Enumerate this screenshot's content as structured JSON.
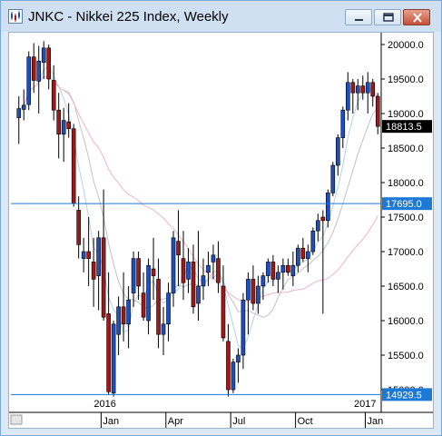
{
  "window": {
    "title": "JNKC - Nikkei 225 Index, Weekly",
    "controls": [
      "minimize-icon",
      "restore-icon",
      "close-icon"
    ]
  },
  "chart_data": {
    "type": "candlestick",
    "title": "JNKC - Nikkei 225 Index, Weekly",
    "ylim": [
      14800,
      20400
    ],
    "y_ticks": [
      "20000.0",
      "19500.0",
      "19000.0",
      "18500.0",
      "18000.0",
      "17500.0",
      "17000.0",
      "16500.0",
      "16000.0",
      "15500.0",
      "15000.0"
    ],
    "x_ticks": [
      "Jan",
      "Apr",
      "Jul",
      "Oct",
      "Jan"
    ],
    "year_labels": [
      "2016",
      "2017"
    ],
    "price_labels": [
      {
        "text": "18813.5",
        "value": 18813.5,
        "style": "last"
      },
      {
        "text": "17695.0",
        "value": 17695.0,
        "style": "line"
      },
      {
        "text": "14929.5",
        "value": 14929.5,
        "style": "line"
      }
    ],
    "horizontal_lines": [
      17695.0,
      14929.5
    ],
    "colors": {
      "up": "#1f4fbf",
      "down": "#a01818",
      "ma_fast": "#b3d1f0",
      "ma_mid": "#c2c2c2",
      "ma_slow": "#f0b4c8",
      "hline": "#1c7ad6",
      "last_label": "#000000",
      "line_label": "#1c7ad6"
    },
    "candles": [
      [
        18940,
        19250,
        18560,
        19070
      ],
      [
        19060,
        19350,
        18900,
        19120
      ],
      [
        19130,
        19900,
        19050,
        19820
      ],
      [
        19820,
        20020,
        19300,
        19480
      ],
      [
        19470,
        19980,
        19000,
        19760
      ],
      [
        19740,
        20050,
        19500,
        19950
      ],
      [
        19950,
        20000,
        19350,
        19500
      ],
      [
        19480,
        19700,
        18900,
        19050
      ],
      [
        19050,
        19300,
        18350,
        18700
      ],
      [
        18700,
        19080,
        18300,
        18900
      ],
      [
        18880,
        19150,
        18650,
        18780
      ],
      [
        18780,
        18850,
        17650,
        17700
      ],
      [
        17600,
        17800,
        16900,
        17100
      ],
      [
        16900,
        17200,
        16700,
        17000
      ],
      [
        17000,
        17500,
        16500,
        16900
      ],
      [
        16850,
        17200,
        16200,
        16600
      ],
      [
        16650,
        17300,
        16150,
        17200
      ],
      [
        17200,
        17900,
        16000,
        16050
      ],
      [
        16100,
        16700,
        14930,
        14970
      ],
      [
        14950,
        16000,
        14900,
        15950
      ],
      [
        15800,
        16350,
        15500,
        16200
      ],
      [
        16200,
        16700,
        15700,
        15950
      ],
      [
        15950,
        16500,
        15600,
        16300
      ],
      [
        16400,
        17000,
        16200,
        16900
      ],
      [
        16900,
        17000,
        16300,
        16500
      ],
      [
        16400,
        16700,
        16000,
        16050
      ],
      [
        16000,
        16900,
        15800,
        16800
      ],
      [
        16750,
        17200,
        16300,
        16650
      ],
      [
        16600,
        16900,
        15600,
        15800
      ],
      [
        15800,
        16200,
        15500,
        15950
      ],
      [
        15950,
        16550,
        15700,
        16400
      ],
      [
        16400,
        17300,
        16200,
        17200
      ],
      [
        17150,
        17600,
        16500,
        16950
      ],
      [
        16900,
        17300,
        16300,
        16550
      ],
      [
        16600,
        17050,
        16400,
        16850
      ],
      [
        16850,
        17100,
        16100,
        16200
      ],
      [
        16250,
        17300,
        16000,
        16500
      ],
      [
        16500,
        16900,
        16300,
        16650
      ],
      [
        16700,
        17000,
        16500,
        16800
      ],
      [
        16850,
        17100,
        16600,
        16950
      ],
      [
        16900,
        17150,
        16400,
        16550
      ],
      [
        16500,
        16800,
        15700,
        15750
      ],
      [
        15700,
        15950,
        14900,
        15000
      ],
      [
        15000,
        15450,
        14950,
        15400
      ],
      [
        15400,
        15600,
        15100,
        15500
      ],
      [
        15500,
        16400,
        15300,
        16300
      ],
      [
        16300,
        16700,
        15800,
        16600
      ],
      [
        16600,
        16800,
        16150,
        16250
      ],
      [
        16250,
        16650,
        16100,
        16500
      ],
      [
        16500,
        16700,
        16300,
        16650
      ],
      [
        16650,
        16900,
        16550,
        16850
      ],
      [
        16850,
        16950,
        16500,
        16600
      ],
      [
        16600,
        16800,
        16400,
        16700
      ],
      [
        16700,
        16900,
        16450,
        16800
      ],
      [
        16800,
        16900,
        16650,
        16700
      ],
      [
        16650,
        17000,
        16500,
        16800
      ],
      [
        16800,
        17100,
        16700,
        17050
      ],
      [
        17050,
        17200,
        16850,
        16900
      ],
      [
        16900,
        17100,
        16700,
        17000
      ],
      [
        17000,
        17350,
        16950,
        17300
      ],
      [
        17300,
        17550,
        17150,
        17450
      ],
      [
        17500,
        17600,
        16100,
        17450
      ],
      [
        17450,
        17900,
        17350,
        17850
      ],
      [
        17850,
        18300,
        17800,
        18250
      ],
      [
        18250,
        18700,
        18100,
        18650
      ],
      [
        18650,
        19100,
        18500,
        19050
      ],
      [
        19050,
        19600,
        18900,
        19450
      ],
      [
        19450,
        19500,
        19000,
        19300
      ],
      [
        19300,
        19500,
        19050,
        19400
      ],
      [
        19400,
        19550,
        19200,
        19300
      ],
      [
        19300,
        19600,
        19000,
        19450
      ],
      [
        19450,
        19500,
        19100,
        19250
      ],
      [
        19250,
        19300,
        18700,
        18813.5
      ]
    ]
  }
}
